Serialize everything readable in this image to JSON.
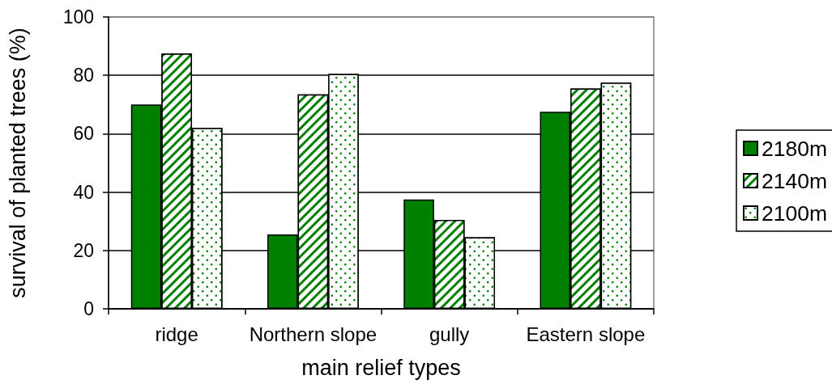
{
  "chart_data": {
    "type": "bar",
    "xlabel": "main relief types",
    "ylabel": "survival of planted trees (%)",
    "categories": [
      "ridge",
      "Northern slope",
      "gully",
      "Eastern slope"
    ],
    "series": [
      {
        "name": "2180m",
        "color": "#008000",
        "values": [
          70,
          25.5,
          37.5,
          67.5
        ]
      },
      {
        "name": "2140m",
        "color": "#008000",
        "values": [
          87.5,
          73.5,
          30.5,
          75.5
        ]
      },
      {
        "name": "2100m",
        "color": "#008000",
        "values": [
          62,
          80.5,
          24.5,
          77.5
        ]
      }
    ],
    "ylim": [
      0,
      100
    ],
    "yticks": [
      0,
      20,
      40,
      60,
      80,
      100
    ],
    "grid": "y",
    "legend": "right"
  }
}
